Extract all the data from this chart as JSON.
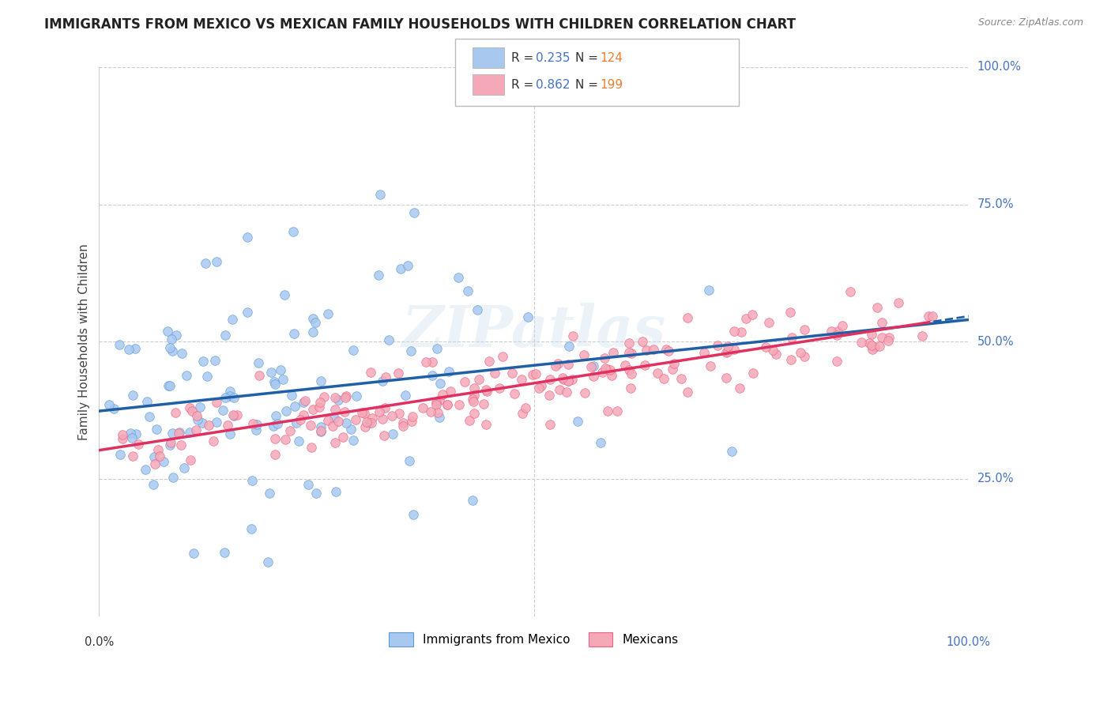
{
  "title": "IMMIGRANTS FROM MEXICO VS MEXICAN FAMILY HOUSEHOLDS WITH CHILDREN CORRELATION CHART",
  "source": "Source: ZipAtlas.com",
  "ylabel": "Family Households with Children",
  "right_yticks": [
    "100.0%",
    "75.0%",
    "50.0%",
    "25.0%"
  ],
  "right_ytick_vals": [
    1.0,
    0.75,
    0.5,
    0.25
  ],
  "blue_R": 0.235,
  "blue_N": 124,
  "pink_R": 0.862,
  "pink_N": 199,
  "blue_color": "#5b9bd5",
  "blue_scatter_color": "#a8c8f0",
  "pink_color": "#f06080",
  "pink_scatter_color": "#f4a8b8",
  "blue_trend_color": "#1f5fa6",
  "pink_trend_color": "#e03060",
  "legend_r_color": "#4472c4",
  "legend_n_color": "#ed7d31",
  "watermark": "ZIPatlas",
  "xlim": [
    0.0,
    1.0
  ],
  "ylim": [
    0.0,
    1.0
  ],
  "grid_color": "#cccccc",
  "background_color": "#ffffff",
  "title_fontsize": 12,
  "axis_label_fontsize": 11,
  "tick_fontsize": 10,
  "blue_scatter_seed": 42,
  "pink_scatter_seed": 7
}
